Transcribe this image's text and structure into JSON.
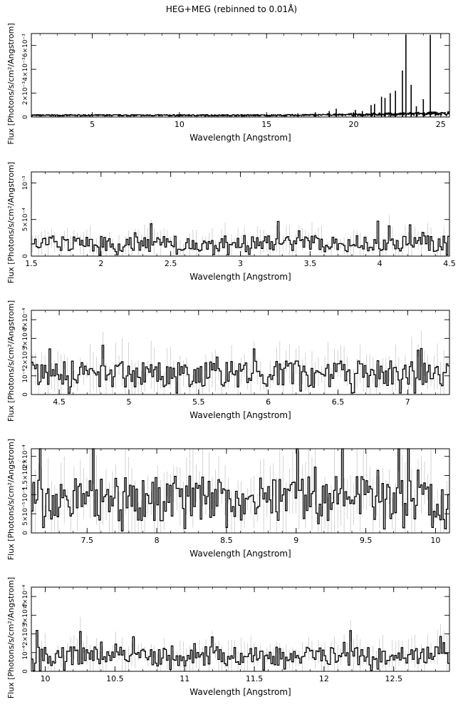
{
  "title": "HEG+MEG (rebinned to 0.01Å)",
  "colors": {
    "hist": "#000000",
    "error": "#c8c8c8",
    "axis": "#000000"
  },
  "chart_data": [
    {
      "type": "line",
      "xlabel": "Wavelength [Angstrom]",
      "ylabel": "Flux [Photons/s/cm²/Angstrom]",
      "xlim": [
        1.5,
        25.5
      ],
      "ylim": [
        0,
        0.007
      ],
      "xticks": [
        5,
        10,
        15,
        20,
        25
      ],
      "xticklabels": [
        "5",
        "10",
        "15",
        "20",
        "25"
      ],
      "yticks": [
        0,
        0.002,
        0.004,
        0.006
      ],
      "yticklabels": [
        "0",
        "2×10⁻³",
        "4×10⁻³",
        "6×10⁻³"
      ],
      "baseline": 0.00016,
      "spikes": [
        {
          "x": 23.0,
          "y": 0.0069
        },
        {
          "x": 24.4,
          "y": 0.0069
        },
        {
          "x": 22.8,
          "y": 0.0039
        },
        {
          "x": 23.3,
          "y": 0.0027
        },
        {
          "x": 22.4,
          "y": 0.0022
        },
        {
          "x": 22.1,
          "y": 0.002
        },
        {
          "x": 24.0,
          "y": 0.0015
        },
        {
          "x": 21.6,
          "y": 0.0017
        },
        {
          "x": 21.8,
          "y": 0.0016
        },
        {
          "x": 21.2,
          "y": 0.0011
        },
        {
          "x": 21.0,
          "y": 0.001
        },
        {
          "x": 23.6,
          "y": 0.0009
        },
        {
          "x": 20.1,
          "y": 0.0006
        },
        {
          "x": 19.0,
          "y": 0.0007
        },
        {
          "x": 18.6,
          "y": 0.0005
        },
        {
          "x": 17.8,
          "y": 0.0004
        },
        {
          "x": 20.5,
          "y": 0.0005
        },
        {
          "x": 16.8,
          "y": 0.0003
        }
      ]
    },
    {
      "type": "line",
      "xlabel": "Wavelength [Angstrom]",
      "ylabel": "Flux [Photons/s/cm²/Angstrom]",
      "xlim": [
        1.5,
        4.5
      ],
      "ylim": [
        0,
        0.00115
      ],
      "xticks": [
        1.5,
        2,
        2.5,
        3,
        3.5,
        4,
        4.5
      ],
      "xticklabels": [
        "1.5",
        "2",
        "2.5",
        "3",
        "3.5",
        "4",
        "4.5"
      ],
      "yticks": [
        0,
        0.0005,
        0.001
      ],
      "yticklabels": [
        "0",
        "5×10⁻⁴",
        "10⁻³"
      ],
      "level": 0.00017
    },
    {
      "type": "line",
      "xlabel": "Wavelength [Angstrom]",
      "ylabel": "Flux [Photons/s/cm²/Angstrom]",
      "xlim": [
        4.3,
        7.3
      ],
      "ylim": [
        0,
        0.00045
      ],
      "xticks": [
        4.5,
        5,
        5.5,
        6,
        6.5,
        7
      ],
      "xticklabels": [
        "4.5",
        "5",
        "5.5",
        "6",
        "6.5",
        "7"
      ],
      "yticks": [
        0,
        0.0001,
        0.0002,
        0.0003,
        0.0004
      ],
      "yticklabels": [
        "0",
        "10⁻⁴",
        "2×10⁻⁴",
        "3×10⁻⁴",
        "4×10⁻⁴"
      ],
      "level": 0.00011
    },
    {
      "type": "line",
      "xlabel": "Wavelength [Angstrom]",
      "ylabel": "Flux [Photons/s/cm²/Angstrom]",
      "xlim": [
        7.1,
        10.1
      ],
      "ylim": [
        0,
        0.00022
      ],
      "xticks": [
        7.5,
        8,
        8.5,
        9,
        9.5,
        10
      ],
      "xticklabels": [
        "7.5",
        "8",
        "8.5",
        "9",
        "9.5",
        "10"
      ],
      "yticks": [
        0,
        5e-05,
        0.0001,
        0.00015,
        0.0002
      ],
      "yticklabels": [
        "0",
        "5×10⁻⁵",
        "10⁻⁴",
        "1.5×10⁻⁴",
        "2×10⁻⁴"
      ],
      "level": 9e-05
    },
    {
      "type": "line",
      "xlabel": "Wavelength [Angstrom]",
      "ylabel": "Flux [Photons/s/cm²/Angstrom]",
      "xlim": [
        9.9,
        12.9
      ],
      "ylim": [
        0,
        0.00045
      ],
      "xticks": [
        10,
        10.5,
        11,
        11.5,
        12,
        12.5
      ],
      "xticklabels": [
        "10",
        "10.5",
        "11",
        "11.5",
        "12",
        "12.5"
      ],
      "yticks": [
        0,
        0.0001,
        0.0002,
        0.0003,
        0.0004
      ],
      "yticklabels": [
        "0",
        "10⁻⁴",
        "2×10⁻⁴",
        "3×10⁻⁴",
        "4×10⁻⁴"
      ],
      "level": 8e-05
    }
  ]
}
